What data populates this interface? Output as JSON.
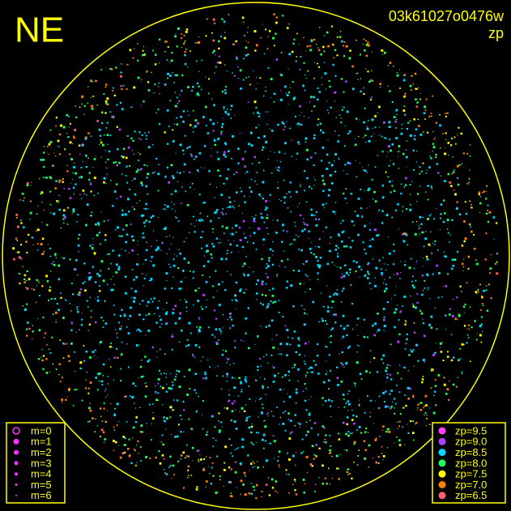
{
  "header": {
    "direction": "NE",
    "image_id": "03k61027o0476w",
    "mode": "zp"
  },
  "magnitude_legend": {
    "items": [
      "m=0",
      "m=1",
      "m=2",
      "m=3",
      "m=4",
      "m=5",
      "m=6"
    ],
    "color": "#ff30ff"
  },
  "zp_legend": {
    "items": [
      {
        "label": "zp=9.5",
        "color": "#ff40ff"
      },
      {
        "label": "zp=9.0",
        "color": "#b040ff"
      },
      {
        "label": "zp=8.5",
        "color": "#00d8ff"
      },
      {
        "label": "zp=8.0",
        "color": "#20ff60"
      },
      {
        "label": "zp=7.5",
        "color": "#ffff00"
      },
      {
        "label": "zp=7.0",
        "color": "#ff8000"
      },
      {
        "label": "zp=6.5",
        "color": "#ff6070"
      }
    ]
  },
  "frame_color": "#ffff00"
}
